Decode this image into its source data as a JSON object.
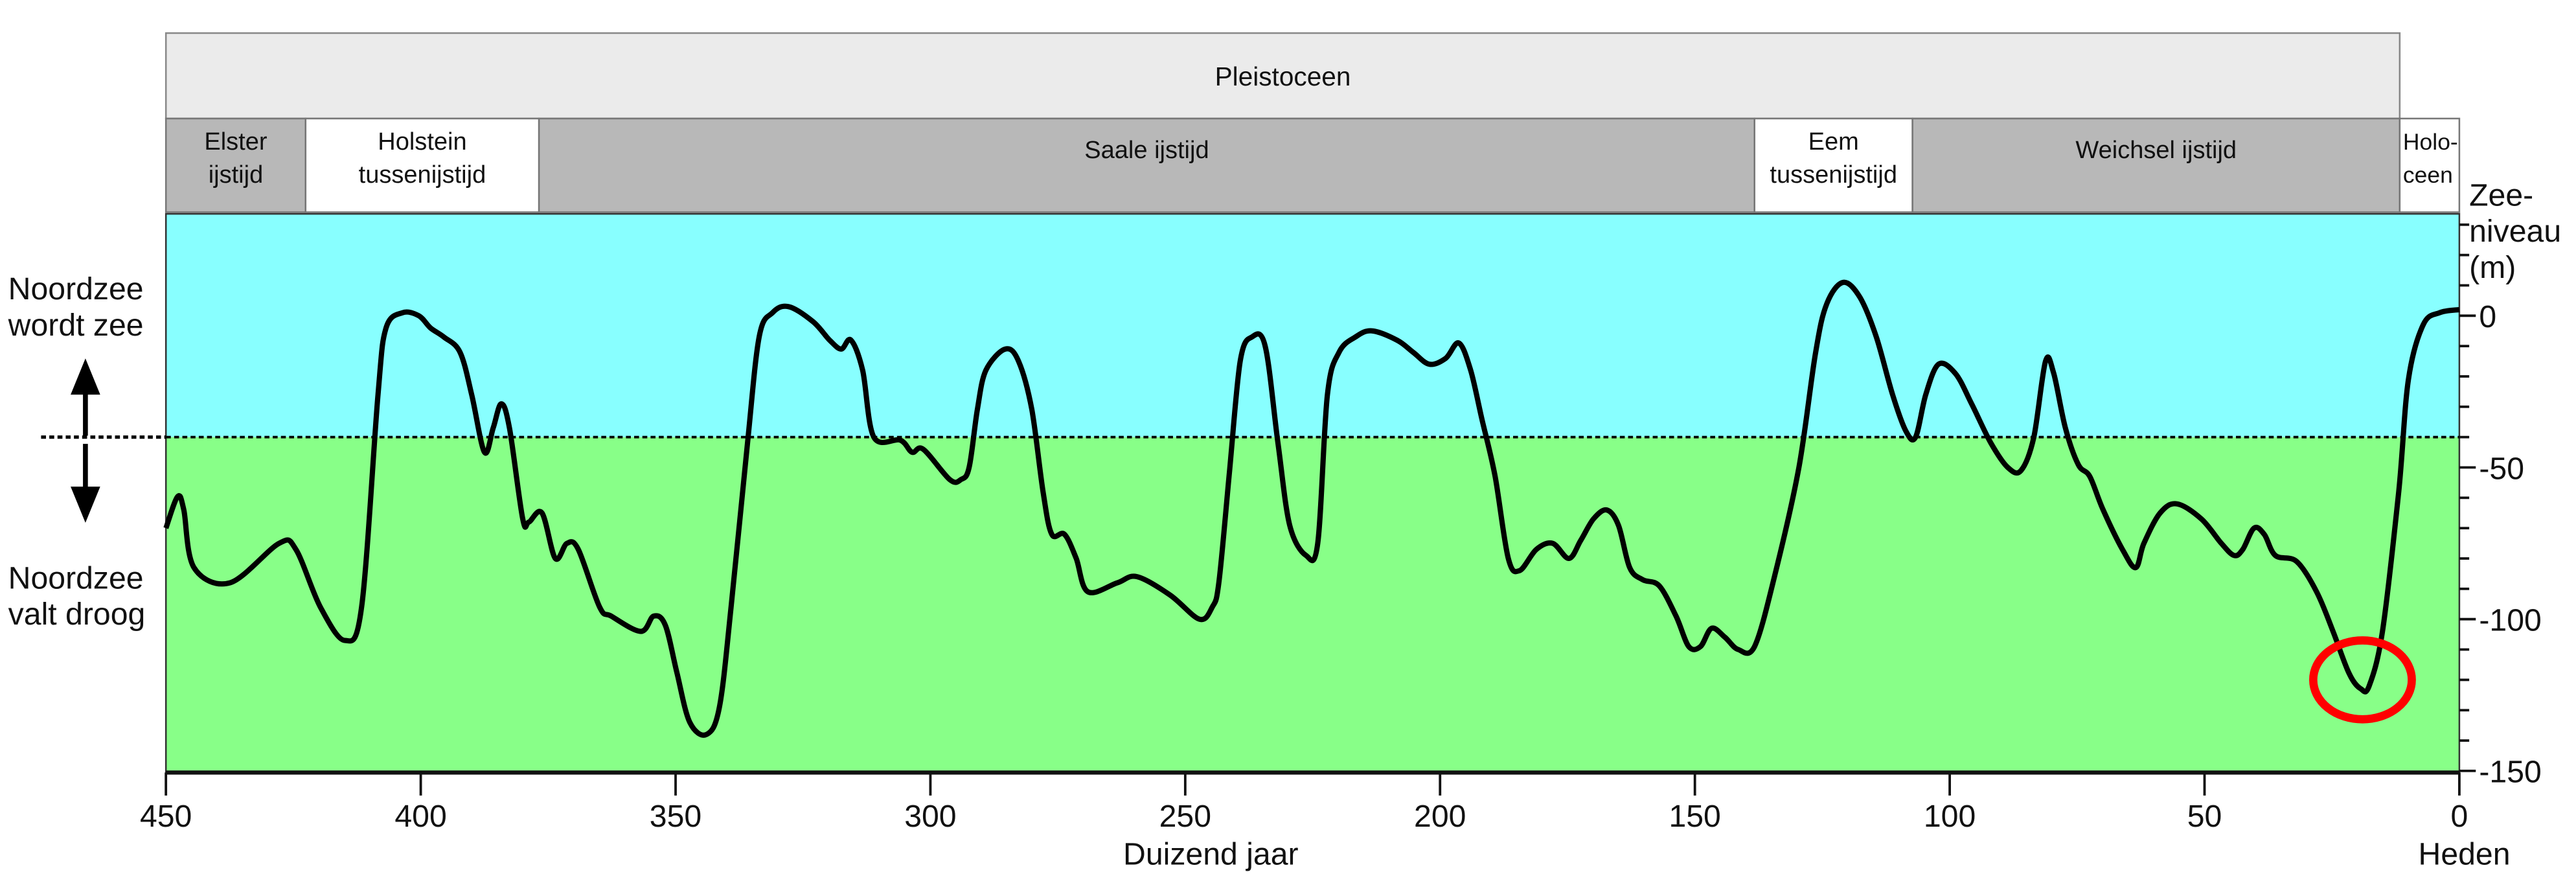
{
  "chart_data": {
    "type": "line",
    "title": "",
    "xlabel": "Duizend jaar",
    "x_end_label": "Heden",
    "ylabel": "Zee-niveau (m)",
    "ylabel_lines": [
      "Zee-",
      "niveau",
      "(m)"
    ],
    "xlim": [
      450,
      0
    ],
    "ylim": [
      -150,
      34
    ],
    "x_ticks": [
      450,
      400,
      350,
      300,
      250,
      200,
      150,
      100,
      50,
      0
    ],
    "y_ticks": [
      0,
      -50,
      -100,
      -150
    ],
    "y_minor_step": 10,
    "reference_level": -40,
    "colors": {
      "above": "#88FFFF",
      "below": "#88FF88",
      "line": "#000000",
      "highlight": "#FF0000",
      "period_bar": "#EBEBEB",
      "glacial": "#B8B8B8",
      "interglacial": "#FFFFFF"
    },
    "epoch": {
      "label": "Pleistoceen",
      "from": 450,
      "to": 11.7
    },
    "periods": [
      {
        "lines": [
          "Elster",
          "ijstijd"
        ],
        "from": 450,
        "to": 422.6,
        "kind": "glacial"
      },
      {
        "lines": [
          "Holstein",
          "tussenijstijd"
        ],
        "from": 422.6,
        "to": 376.8,
        "kind": "interglacial"
      },
      {
        "lines": [
          "Saale ijstijd"
        ],
        "from": 376.8,
        "to": 138.3,
        "kind": "glacial"
      },
      {
        "lines": [
          "Eem",
          "tussenijstijd"
        ],
        "from": 138.3,
        "to": 107.3,
        "kind": "interglacial"
      },
      {
        "lines": [
          "Weichsel ijstijd"
        ],
        "from": 107.3,
        "to": 11.7,
        "kind": "glacial"
      },
      {
        "lines": [
          "Holo-",
          "ceen"
        ],
        "from": 11.7,
        "to": 0,
        "kind": "interglacial"
      }
    ],
    "side_labels": {
      "up": [
        "Noordzee",
        "wordt zee"
      ],
      "down": [
        "Noordzee",
        "valt droog"
      ]
    },
    "highlight": {
      "x": 19,
      "y": -120
    },
    "series": [
      {
        "name": "Zeeniveau",
        "points": [
          [
            450,
            -70
          ],
          [
            447.7,
            -59.6
          ],
          [
            446.5,
            -64
          ],
          [
            444.5,
            -83
          ],
          [
            437.4,
            -88
          ],
          [
            427.8,
            -75
          ],
          [
            424.5,
            -77
          ],
          [
            419.7,
            -96
          ],
          [
            414.9,
            -107
          ],
          [
            411.6,
            -96
          ],
          [
            408.4,
            -26
          ],
          [
            406.8,
            -4
          ],
          [
            403.6,
            1
          ],
          [
            400.4,
            0
          ],
          [
            398.1,
            -4
          ],
          [
            395.5,
            -7
          ],
          [
            392.3,
            -12
          ],
          [
            390.0,
            -26
          ],
          [
            387.5,
            -45
          ],
          [
            385.8,
            -37
          ],
          [
            384.2,
            -29
          ],
          [
            382.6,
            -37
          ],
          [
            380.0,
            -67
          ],
          [
            378.8,
            -68
          ],
          [
            376.2,
            -65
          ],
          [
            373.6,
            -80
          ],
          [
            371.3,
            -75
          ],
          [
            369.1,
            -77
          ],
          [
            364.9,
            -96
          ],
          [
            362.6,
            -99
          ],
          [
            356.8,
            -104
          ],
          [
            354.3,
            -99
          ],
          [
            352.0,
            -102
          ],
          [
            349.7,
            -118
          ],
          [
            347.2,
            -134
          ],
          [
            343.9,
            -138
          ],
          [
            341.4,
            -129
          ],
          [
            339.1,
            -96
          ],
          [
            335.9,
            -42
          ],
          [
            333.6,
            -7
          ],
          [
            331.0,
            1
          ],
          [
            327.8,
            3
          ],
          [
            323.0,
            -2
          ],
          [
            319.8,
            -8
          ],
          [
            317.5,
            -11
          ],
          [
            315.6,
            -8
          ],
          [
            313.3,
            -18
          ],
          [
            311.1,
            -40
          ],
          [
            305.9,
            -41
          ],
          [
            303.6,
            -45
          ],
          [
            301.4,
            -44
          ],
          [
            296.2,
            -54
          ],
          [
            294.0,
            -54
          ],
          [
            292.4,
            -50
          ],
          [
            290.8,
            -31
          ],
          [
            289.1,
            -18
          ],
          [
            285.3,
            -11
          ],
          [
            282.7,
            -15
          ],
          [
            280.1,
            -31
          ],
          [
            277.9,
            -58
          ],
          [
            276.2,
            -72
          ],
          [
            273.7,
            -72
          ],
          [
            271.4,
            -80
          ],
          [
            269.1,
            -91
          ],
          [
            263.3,
            -88
          ],
          [
            259.5,
            -86
          ],
          [
            253.0,
            -92
          ],
          [
            247.2,
            -100
          ],
          [
            244.7,
            -96
          ],
          [
            243.4,
            -88
          ],
          [
            241.4,
            -53
          ],
          [
            239.2,
            -15
          ],
          [
            236.9,
            -7
          ],
          [
            234.3,
            -10
          ],
          [
            231.8,
            -42
          ],
          [
            229.5,
            -69
          ],
          [
            226.3,
            -79
          ],
          [
            224.0,
            -75
          ],
          [
            222.1,
            -26
          ],
          [
            219.8,
            -12
          ],
          [
            216.6,
            -7
          ],
          [
            213.4,
            -5
          ],
          [
            208.5,
            -8
          ],
          [
            205.3,
            -12
          ],
          [
            202.1,
            -16
          ],
          [
            198.9,
            -14
          ],
          [
            196.3,
            -9
          ],
          [
            194.0,
            -18
          ],
          [
            191.8,
            -34
          ],
          [
            189.2,
            -53
          ],
          [
            186.6,
            -80
          ],
          [
            184.4,
            -84
          ],
          [
            181.1,
            -77
          ],
          [
            177.9,
            -75
          ],
          [
            174.7,
            -80
          ],
          [
            172.4,
            -74
          ],
          [
            169.9,
            -67
          ],
          [
            167.3,
            -64
          ],
          [
            165.0,
            -69
          ],
          [
            162.8,
            -83
          ],
          [
            160.2,
            -87
          ],
          [
            157.0,
            -89
          ],
          [
            153.7,
            -99
          ],
          [
            151.2,
            -109
          ],
          [
            148.9,
            -109
          ],
          [
            146.7,
            -103
          ],
          [
            144.1,
            -106
          ],
          [
            141.5,
            -110
          ],
          [
            138.3,
            -109
          ],
          [
            134.4,
            -86
          ],
          [
            129.6,
            -50
          ],
          [
            126.3,
            -12
          ],
          [
            124.1,
            4
          ],
          [
            120.9,
            11
          ],
          [
            117.6,
            6
          ],
          [
            114.4,
            -7
          ],
          [
            111.2,
            -26
          ],
          [
            108.6,
            -38
          ],
          [
            106.7,
            -40
          ],
          [
            104.7,
            -26
          ],
          [
            102.2,
            -16
          ],
          [
            98.9,
            -19
          ],
          [
            95.7,
            -29
          ],
          [
            91.9,
            -42
          ],
          [
            88.6,
            -50
          ],
          [
            86.0,
            -51
          ],
          [
            83.5,
            -40
          ],
          [
            81.2,
            -15
          ],
          [
            79.6,
            -19
          ],
          [
            77.3,
            -37
          ],
          [
            74.8,
            -49
          ],
          [
            72.5,
            -53
          ],
          [
            69.9,
            -64
          ],
          [
            66.1,
            -77
          ],
          [
            63.5,
            -83
          ],
          [
            61.9,
            -75
          ],
          [
            58.7,
            -65
          ],
          [
            55.4,
            -62
          ],
          [
            50.6,
            -67
          ],
          [
            46.7,
            -75
          ],
          [
            44.2,
            -79
          ],
          [
            42.5,
            -77
          ],
          [
            40.3,
            -70
          ],
          [
            38.3,
            -72
          ],
          [
            36.1,
            -79
          ],
          [
            31.9,
            -81
          ],
          [
            28.0,
            -91
          ],
          [
            24.8,
            -104
          ],
          [
            21.6,
            -118
          ],
          [
            19.3,
            -123
          ],
          [
            17.7,
            -122
          ],
          [
            15.1,
            -104
          ],
          [
            11.9,
            -58
          ],
          [
            10.0,
            -21
          ],
          [
            7.1,
            -3
          ],
          [
            3.9,
            1
          ],
          [
            0,
            2
          ]
        ]
      }
    ]
  }
}
